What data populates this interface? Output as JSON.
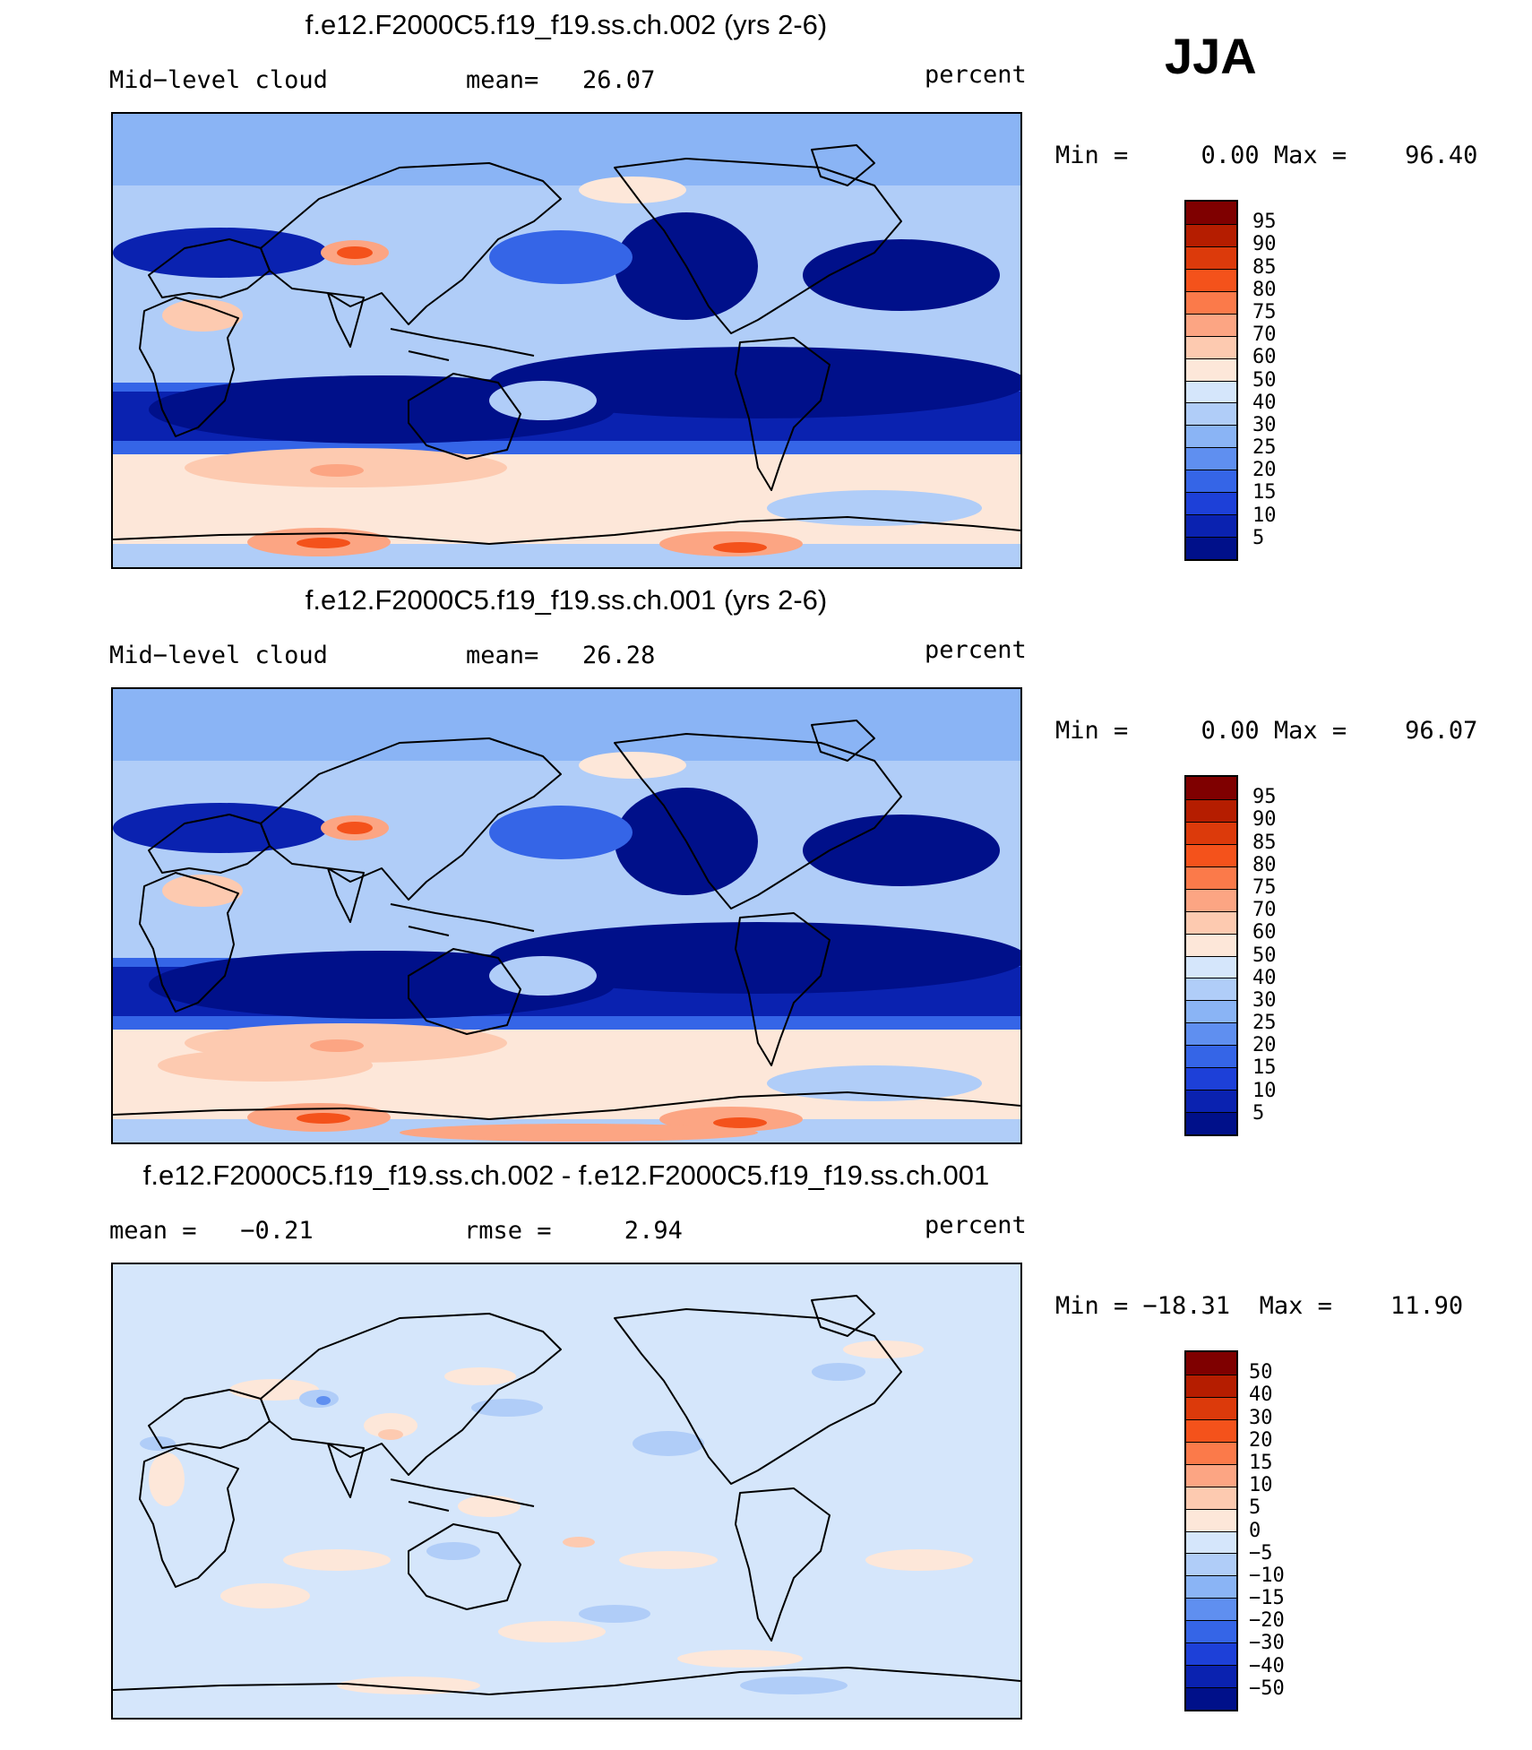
{
  "season": "JJA",
  "panels": [
    {
      "title": "f.e12.F2000C5.f19_f19.ss.ch.002 (yrs 2-6)",
      "left_label": "Mid−level cloud",
      "center_label": "mean=   26.07",
      "right_label": "percent",
      "minmax": "Min =     0.00 Max =    96.40",
      "colorbar": {
        "labels": [
          "95",
          "90",
          "85",
          "80",
          "75",
          "70",
          "60",
          "50",
          "40",
          "30",
          "25",
          "20",
          "15",
          "10",
          "5"
        ],
        "colors": [
          "#7f0000",
          "#b51d00",
          "#dc3a0b",
          "#f4521b",
          "#fb7a4a",
          "#fca583",
          "#fdcab0",
          "#fde7d9",
          "#d5e6fb",
          "#b0cdf8",
          "#8ab4f5",
          "#5f8ff0",
          "#3565e7",
          "#1d40d8",
          "#0a22b0",
          "#00108a"
        ]
      },
      "map_kind": "cloud_a"
    },
    {
      "title": "f.e12.F2000C5.f19_f19.ss.ch.001 (yrs 2-6)",
      "left_label": "Mid−level cloud",
      "center_label": "mean=   26.28",
      "right_label": "percent",
      "minmax": "Min =     0.00 Max =    96.07",
      "colorbar": {
        "labels": [
          "95",
          "90",
          "85",
          "80",
          "75",
          "70",
          "60",
          "50",
          "40",
          "30",
          "25",
          "20",
          "15",
          "10",
          "5"
        ],
        "colors": [
          "#7f0000",
          "#b51d00",
          "#dc3a0b",
          "#f4521b",
          "#fb7a4a",
          "#fca583",
          "#fdcab0",
          "#fde7d9",
          "#d5e6fb",
          "#b0cdf8",
          "#8ab4f5",
          "#5f8ff0",
          "#3565e7",
          "#1d40d8",
          "#0a22b0",
          "#00108a"
        ]
      },
      "map_kind": "cloud_b"
    },
    {
      "title": "f.e12.F2000C5.f19_f19.ss.ch.002 - f.e12.F2000C5.f19_f19.ss.ch.001",
      "left_label": "mean =   −0.21",
      "center_label": "rmse =     2.94",
      "right_label": "percent",
      "minmax": "Min = −18.31  Max =    11.90",
      "colorbar": {
        "labels": [
          "50",
          "40",
          "30",
          "20",
          "15",
          "10",
          "5",
          "0",
          "−5",
          "−10",
          "−15",
          "−20",
          "−30",
          "−40",
          "−50"
        ],
        "colors": [
          "#7f0000",
          "#b51d00",
          "#dc3a0b",
          "#f4521b",
          "#fb7a4a",
          "#fca583",
          "#fdcab0",
          "#fde7d9",
          "#d5e6fb",
          "#b0cdf8",
          "#8ab4f5",
          "#5f8ff0",
          "#3565e7",
          "#1d40d8",
          "#0a22b0",
          "#00108a"
        ]
      },
      "map_kind": "diff"
    }
  ]
}
